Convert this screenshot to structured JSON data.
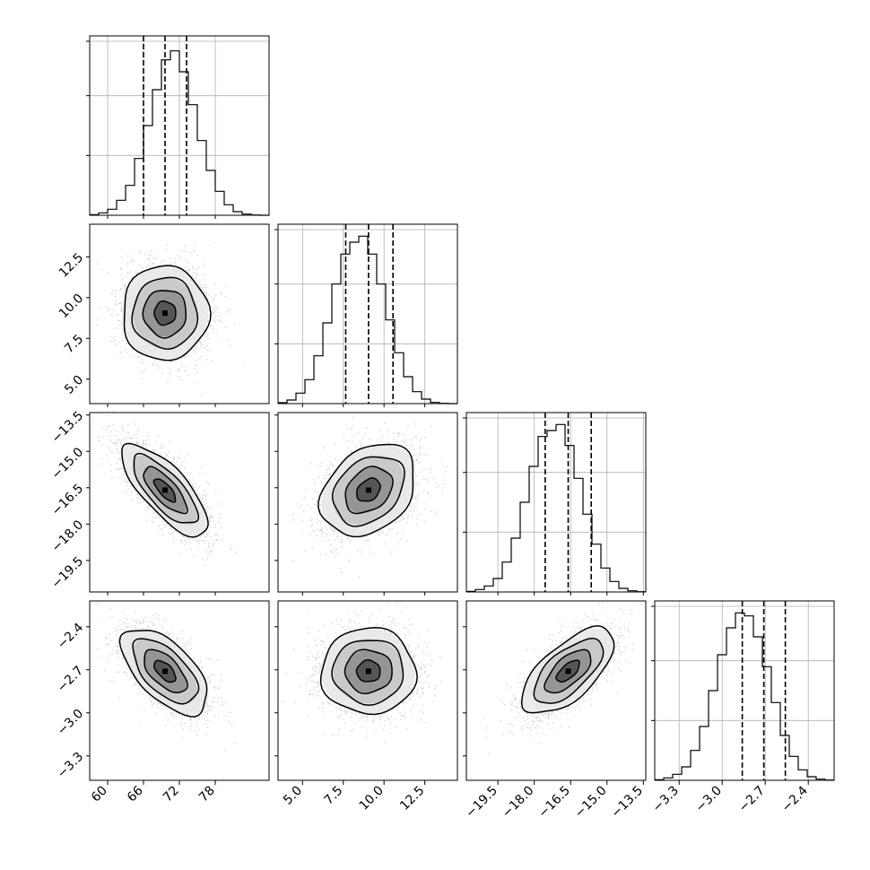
{
  "chart_data": {
    "type": "corner",
    "title": "",
    "grid": true,
    "parameters": [
      {
        "id": "p0",
        "label": "",
        "range": [
          57,
          87
        ],
        "ticks": [
          60,
          66,
          72,
          78
        ],
        "tick_labels": [
          "60",
          "66",
          "72",
          "78"
        ],
        "quantiles": [
          66.0,
          69.6,
          73.2
        ]
      },
      {
        "id": "p1",
        "label": "",
        "range": [
          3.5,
          14.5
        ],
        "ticks": [
          5.0,
          7.5,
          10.0,
          12.5
        ],
        "tick_labels": [
          "5.0",
          "7.5",
          "10.0",
          "12.5"
        ],
        "quantiles": [
          7.65,
          9.05,
          10.55
        ]
      },
      {
        "id": "p2",
        "label": "",
        "range": [
          -20.8,
          -13.4
        ],
        "ticks": [
          -19.5,
          -18.0,
          -16.5,
          -15.0,
          -13.5
        ],
        "tick_labels": [
          "−19.5",
          "−18.0",
          "−16.5",
          "−15.0",
          "−13.5"
        ],
        "quantiles": [
          -17.55,
          -16.6,
          -15.65
        ]
      },
      {
        "id": "p3",
        "label": "",
        "range": [
          -3.47,
          -2.22
        ],
        "ticks": [
          -3.3,
          -3.0,
          -2.7,
          -2.4
        ],
        "tick_labels": [
          "−3.3",
          "−3.0",
          "−2.7",
          "−2.4"
        ],
        "quantiles": [
          -2.86,
          -2.71,
          -2.56
        ]
      }
    ],
    "histograms": [
      {
        "param": 0,
        "bins": [
          57,
          58.5,
          60,
          61.5,
          63,
          64.5,
          66,
          67.5,
          69,
          70.5,
          72,
          73.5,
          75,
          76.5,
          78,
          79.5,
          81,
          82.5,
          84,
          85.5,
          87
        ],
        "counts": [
          2,
          8,
          20,
          50,
          100,
          190,
          300,
          420,
          520,
          550,
          480,
          370,
          250,
          150,
          80,
          35,
          12,
          4,
          1,
          0
        ],
        "y_max": 600,
        "y_ticks": [
          200,
          400
        ]
      },
      {
        "param": 1,
        "bins": [
          3.5,
          4.05,
          4.6,
          5.15,
          5.7,
          6.25,
          6.8,
          7.35,
          7.9,
          8.45,
          9.0,
          9.55,
          10.1,
          10.65,
          11.2,
          11.75,
          12.3,
          12.85,
          13.4,
          13.95,
          14.5
        ],
        "counts": [
          3,
          12,
          35,
          80,
          160,
          270,
          400,
          500,
          540,
          560,
          500,
          400,
          280,
          170,
          90,
          40,
          15,
          4,
          1,
          0
        ],
        "y_max": 600,
        "y_ticks": [
          200,
          400
        ]
      },
      {
        "param": 2,
        "bins": [
          -20.8,
          -20.43,
          -20.06,
          -19.69,
          -19.32,
          -18.95,
          -18.58,
          -18.21,
          -17.84,
          -17.47,
          -17.1,
          -16.73,
          -16.36,
          -15.99,
          -15.62,
          -15.25,
          -14.88,
          -14.51,
          -14.14,
          -13.77,
          -13.4
        ],
        "counts": [
          2,
          8,
          20,
          45,
          100,
          180,
          300,
          420,
          520,
          540,
          560,
          490,
          380,
          260,
          160,
          80,
          35,
          12,
          4,
          1
        ],
        "y_max": 600,
        "y_ticks": [
          200,
          400
        ]
      },
      {
        "param": 3,
        "bins": [
          -3.47,
          -3.4075,
          -3.345,
          -3.2825,
          -3.22,
          -3.1575,
          -3.095,
          -3.0325,
          -2.97,
          -2.9075,
          -2.845,
          -2.7825,
          -2.72,
          -2.6575,
          -2.595,
          -2.5325,
          -2.47,
          -2.4075,
          -2.345,
          -2.2825,
          -2.22
        ],
        "counts": [
          2,
          8,
          20,
          45,
          100,
          180,
          300,
          420,
          510,
          560,
          550,
          480,
          380,
          260,
          150,
          80,
          35,
          12,
          4,
          1
        ],
        "y_max": 600,
        "y_ticks": [
          200,
          400
        ]
      }
    ],
    "pairs": [
      {
        "x": 0,
        "y": 1,
        "mean": [
          69.6,
          9.05
        ],
        "sd": [
          3.6,
          1.45
        ],
        "corr": 0.0
      },
      {
        "x": 0,
        "y": 2,
        "mean": [
          69.6,
          -16.6
        ],
        "sd": [
          3.6,
          0.95
        ],
        "corr": -0.75
      },
      {
        "x": 1,
        "y": 2,
        "mean": [
          9.05,
          -16.6
        ],
        "sd": [
          1.45,
          0.95
        ],
        "corr": 0.3
      },
      {
        "x": 0,
        "y": 3,
        "mean": [
          69.6,
          -2.71
        ],
        "sd": [
          3.6,
          0.15
        ],
        "corr": -0.6
      },
      {
        "x": 1,
        "y": 3,
        "mean": [
          9.05,
          -2.71
        ],
        "sd": [
          1.45,
          0.15
        ],
        "corr": 0.0
      },
      {
        "x": 2,
        "y": 3,
        "mean": [
          -16.6,
          -2.71
        ],
        "sd": [
          0.95,
          0.15
        ],
        "corr": 0.65
      }
    ],
    "contour_sigmas": [
      0.5,
      1.0,
      1.5,
      2.0
    ],
    "colors": {
      "line": "#000000",
      "grid": "#b0b0b0",
      "scatter": "#7a7a7a",
      "quantile": "#000000"
    }
  }
}
